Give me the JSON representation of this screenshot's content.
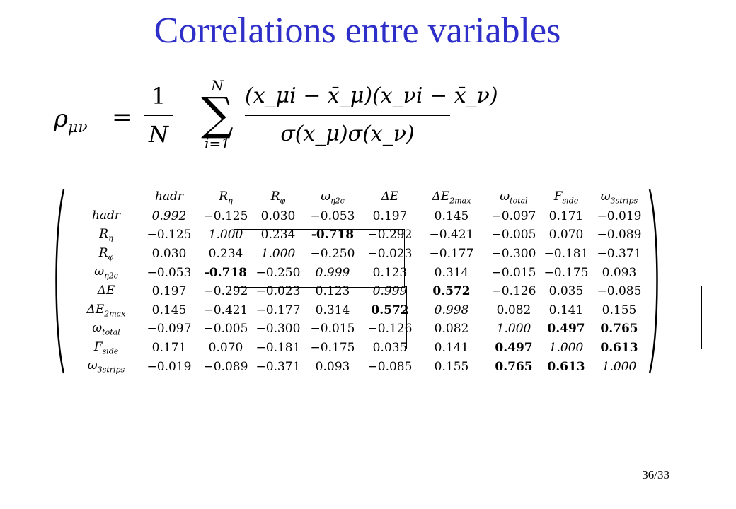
{
  "slide": {
    "title": "Correlations entre variables",
    "page_number": "36/33"
  },
  "formula": {
    "lhs": "ρ",
    "lhs_sub": "μν",
    "equals": "=",
    "frac_num": "1",
    "frac_den": "N",
    "sum_top": "N",
    "sum_symbol": "∑",
    "sum_bottom": "i=1",
    "numerator": "(x_μi − x̄_μ)(x_νi − x̄_ν)",
    "denominator": "σ(x_μ)σ(x_ν)"
  },
  "matrix": {
    "headers": [
      {
        "base": "hadr",
        "sub": ""
      },
      {
        "base": "R",
        "sub": "η"
      },
      {
        "base": "R",
        "sub": "φ"
      },
      {
        "base": "ω",
        "sub": "η2c"
      },
      {
        "base": "ΔE",
        "sub": ""
      },
      {
        "base": "ΔE",
        "sub": "2max"
      },
      {
        "base": "ω",
        "sub": "total"
      },
      {
        "base": "F",
        "sub": "side"
      },
      {
        "base": "ω",
        "sub": "3strips"
      }
    ],
    "rows": [
      {
        "label": {
          "base": "hadr",
          "sub": ""
        },
        "values": [
          "0.992",
          "−0.125",
          "0.030",
          "−0.053",
          "0.197",
          "0.145",
          "−0.097",
          "0.171",
          "−0.019"
        ]
      },
      {
        "label": {
          "base": "R",
          "sub": "η"
        },
        "values": [
          "−0.125",
          "1.000",
          "0.234",
          "-0.718",
          "−0.292",
          "−0.421",
          "−0.005",
          "0.070",
          "−0.089"
        ]
      },
      {
        "label": {
          "base": "R",
          "sub": "φ"
        },
        "values": [
          "0.030",
          "0.234",
          "1.000",
          "−0.250",
          "−0.023",
          "−0.177",
          "−0.300",
          "−0.181",
          "−0.371"
        ]
      },
      {
        "label": {
          "base": "ω",
          "sub": "η2c"
        },
        "values": [
          "−0.053",
          "-0.718",
          "−0.250",
          "0.999",
          "0.123",
          "0.314",
          "−0.015",
          "−0.175",
          "0.093"
        ]
      },
      {
        "label": {
          "base": "ΔE",
          "sub": ""
        },
        "values": [
          "0.197",
          "−0.292",
          "−0.023",
          "0.123",
          "0.999",
          "0.572",
          "−0.126",
          "0.035",
          "−0.085"
        ]
      },
      {
        "label": {
          "base": "ΔE",
          "sub": "2max"
        },
        "values": [
          "0.145",
          "−0.421",
          "−0.177",
          "0.314",
          "0.572",
          "0.998",
          "0.082",
          "0.141",
          "0.155"
        ]
      },
      {
        "label": {
          "base": "ω",
          "sub": "total"
        },
        "values": [
          "−0.097",
          "−0.005",
          "−0.300",
          "−0.015",
          "−0.126",
          "0.082",
          "1.000",
          "0.497",
          "0.765"
        ]
      },
      {
        "label": {
          "base": "F",
          "sub": "side"
        },
        "values": [
          "0.171",
          "0.070",
          "−0.181",
          "−0.175",
          "0.035",
          "0.141",
          "0.497",
          "1.000",
          "0.613"
        ]
      },
      {
        "label": {
          "base": "ω",
          "sub": "3strips"
        },
        "values": [
          "−0.019",
          "−0.089",
          "−0.371",
          "0.093",
          "−0.085",
          "0.155",
          "0.765",
          "0.613",
          "1.000"
        ]
      }
    ],
    "bold_cells": [
      [
        1,
        3
      ],
      [
        3,
        1
      ],
      [
        4,
        5
      ],
      [
        5,
        4
      ],
      [
        6,
        7
      ],
      [
        6,
        8
      ],
      [
        7,
        6
      ],
      [
        7,
        8
      ],
      [
        8,
        6
      ],
      [
        8,
        7
      ]
    ]
  }
}
